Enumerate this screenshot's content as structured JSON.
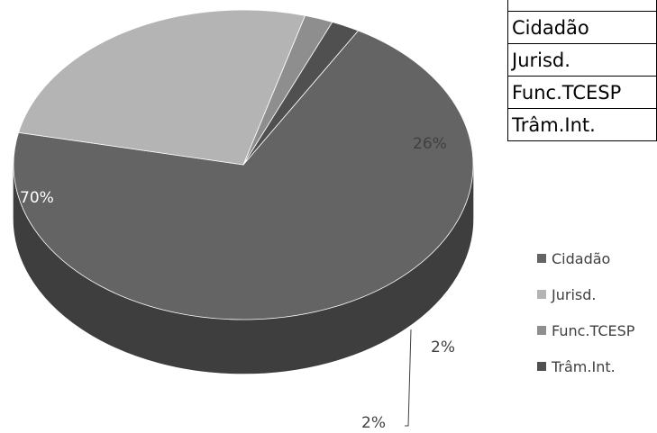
{
  "table": {
    "rows": [
      "",
      "Cidadão",
      "Jurisd.",
      "Func.TCESP",
      "Trâm.Int."
    ]
  },
  "chart_data": {
    "type": "pie",
    "variant": "3d",
    "categories": [
      "Cidadão",
      "Jurisd.",
      "Func.TCESP",
      "Trâm.Int."
    ],
    "values": [
      70,
      26,
      2,
      2
    ],
    "data_labels": [
      "70%",
      "26%",
      "2%",
      "2%"
    ],
    "colors": [
      "#646464",
      "#b4b4b4",
      "#8e8e8e",
      "#505050"
    ],
    "legend": {
      "position": "right",
      "entries": [
        "Cidadão",
        "Jurisd.",
        "Func.TCESP",
        "Trâm.Int."
      ]
    }
  }
}
